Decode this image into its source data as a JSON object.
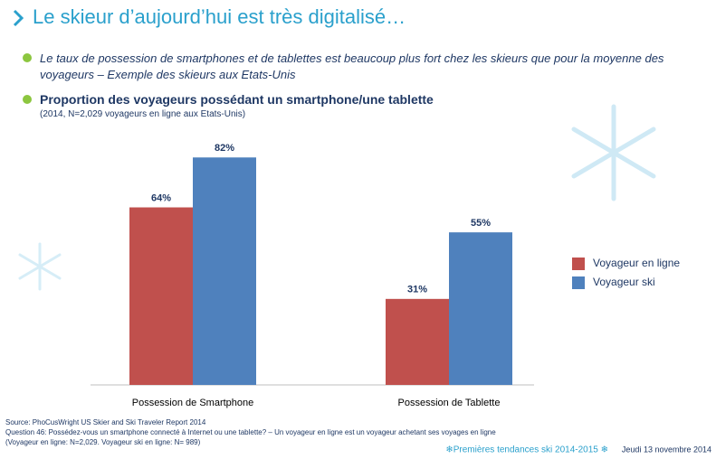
{
  "header": {
    "title": "Le skieur d’aujourd’hui est très digitalisé…"
  },
  "intro": "Le taux de possession de smartphones et de tablettes est beaucoup plus fort chez les skieurs que pour la moyenne des voyageurs – Exemple des skieurs aux Etats-Unis",
  "chart_data": {
    "type": "bar",
    "title": "Proportion des voyageurs possédant un smartphone/une tablette",
    "subtitle": "(2014, N=2,029 voyageurs en ligne aux Etats-Unis)",
    "categories": [
      "Possession de Smartphone",
      "Possession de Tablette"
    ],
    "series": [
      {
        "name": "Voyageur en ligne",
        "color": "#c0504d",
        "values": [
          64,
          31
        ],
        "value_labels": [
          "64%",
          "31%"
        ]
      },
      {
        "name": "Voyageur ski",
        "color": "#4f81bd",
        "values": [
          82,
          55
        ],
        "value_labels": [
          "82%",
          "55%"
        ]
      }
    ],
    "legend": "right"
  },
  "source": [
    "Source: PhoCusWright US Skier and Ski Traveler Report 2014",
    "Question 46: Possédez-vous un smartphone connecté à Internet ou une tablette? – Un voyageur en ligne est un voyageur achetant ses voyages en ligne",
    "(Voyageur en ligne: N=2,029. Voyageur ski en ligne: N= 989)"
  ],
  "footer": {
    "event": "❄Premières tendances ski 2014-2015 ❄",
    "date": "Jeudi 13 novembre 2014"
  }
}
